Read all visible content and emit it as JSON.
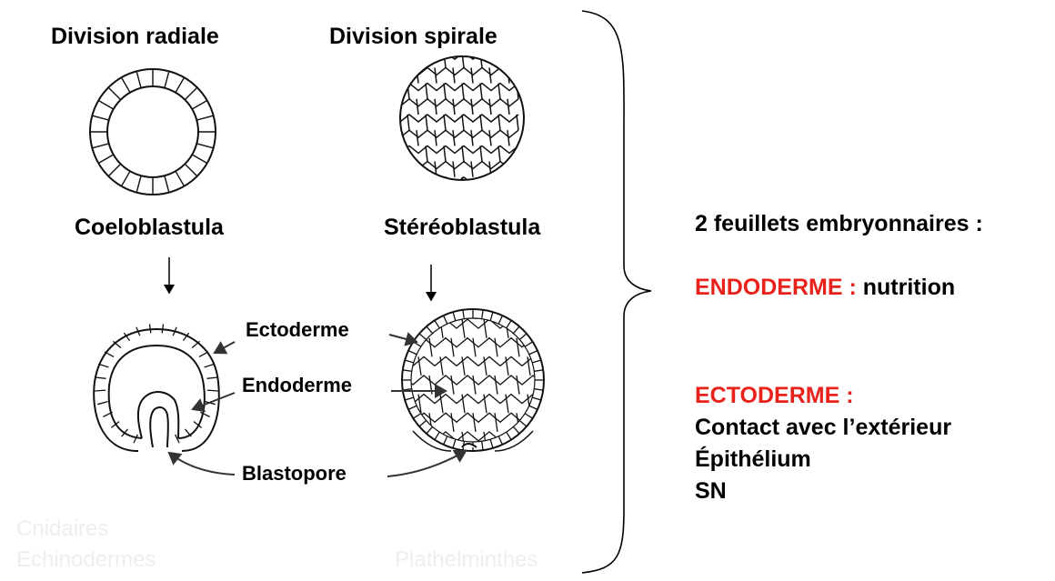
{
  "headers": {
    "radial": "Division radiale",
    "spiral": "Division spirale"
  },
  "stages": {
    "radial": "Coeloblastula",
    "spiral": "Stéréoblastula"
  },
  "layers": {
    "ectoderme": "Ectoderme",
    "endoderme": "Endoderme",
    "blastopore": "Blastopore"
  },
  "right": {
    "title": "2 feuillets embryonnaires :",
    "endoderm_term": "ENDODERME :",
    "endoderm_role": "nutrition",
    "ectoderm_term": "ECTODERME :",
    "ectoderm_lines": [
      "Contact avec l’extérieur",
      "Épithélium",
      "SN"
    ]
  },
  "faint": {
    "group_a_1": "Cnidaires",
    "group_a_2": "Echinodermes",
    "group_b": "Plathelminthes"
  },
  "colors": {
    "accent_red": "#e8211a",
    "ink": "#000000"
  }
}
